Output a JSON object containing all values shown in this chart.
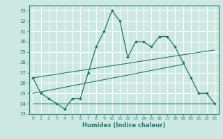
{
  "xlabel": "Humidex (Indice chaleur)",
  "bg_color": "#cce8e0",
  "grid_color": "#ffffff",
  "line_color": "#1a7a6e",
  "xlim": [
    -0.5,
    23.5
  ],
  "ylim": [
    23,
    33.5
  ],
  "xticks": [
    0,
    1,
    2,
    3,
    4,
    5,
    6,
    7,
    8,
    9,
    10,
    11,
    12,
    13,
    14,
    15,
    16,
    17,
    18,
    19,
    20,
    21,
    22,
    23
  ],
  "yticks": [
    23,
    24,
    25,
    26,
    27,
    28,
    29,
    30,
    31,
    32,
    33
  ],
  "main_x": [
    0,
    1,
    2,
    3,
    4,
    5,
    6,
    7,
    8,
    9,
    10,
    11,
    12,
    13,
    14,
    15,
    16,
    17,
    18,
    19,
    20,
    21,
    22,
    23
  ],
  "main_y": [
    26.5,
    25.0,
    24.5,
    24.0,
    23.5,
    24.5,
    24.5,
    27.0,
    29.5,
    31.0,
    33.0,
    32.0,
    28.5,
    30.0,
    30.0,
    29.5,
    30.5,
    30.5,
    29.5,
    28.0,
    26.5,
    25.0,
    25.0,
    24.0
  ],
  "line2_x": [
    0,
    23
  ],
  "line2_y": [
    24.0,
    24.0
  ],
  "line3_x": [
    0,
    19
  ],
  "line3_y": [
    25.0,
    27.8
  ],
  "line4_x": [
    0,
    23
  ],
  "line4_y": [
    26.5,
    29.2
  ]
}
